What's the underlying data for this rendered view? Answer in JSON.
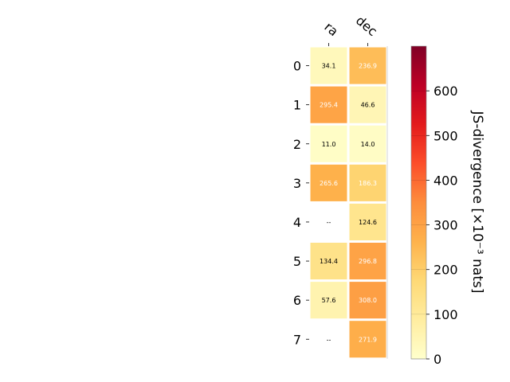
{
  "chart_data": {
    "type": "heatmap",
    "columns": [
      "ra",
      "dec"
    ],
    "rows": [
      "0",
      "1",
      "2",
      "3",
      "4",
      "5",
      "6",
      "7"
    ],
    "values": [
      [
        34.1,
        236.9
      ],
      [
        295.4,
        46.6
      ],
      [
        11.0,
        14.0
      ],
      [
        265.6,
        186.3
      ],
      [
        null,
        124.6
      ],
      [
        134.4,
        296.8
      ],
      [
        57.6,
        308.0
      ],
      [
        null,
        271.9
      ]
    ],
    "cell_labels": [
      [
        "34.1",
        "236.9"
      ],
      [
        "295.4",
        "46.6"
      ],
      [
        "11.0",
        "14.0"
      ],
      [
        "265.6",
        "186.3"
      ],
      [
        "--",
        "124.6"
      ],
      [
        "134.4",
        "296.8"
      ],
      [
        "57.6",
        "308.0"
      ],
      [
        "--",
        "271.9"
      ]
    ],
    "colorbar": {
      "label": "JS-divergence [×10⁻³ nats]",
      "range": [
        0,
        700
      ],
      "ticks": [
        "0",
        "100",
        "200",
        "300",
        "400",
        "500",
        "600"
      ],
      "colormap": "YlOrRd"
    }
  }
}
